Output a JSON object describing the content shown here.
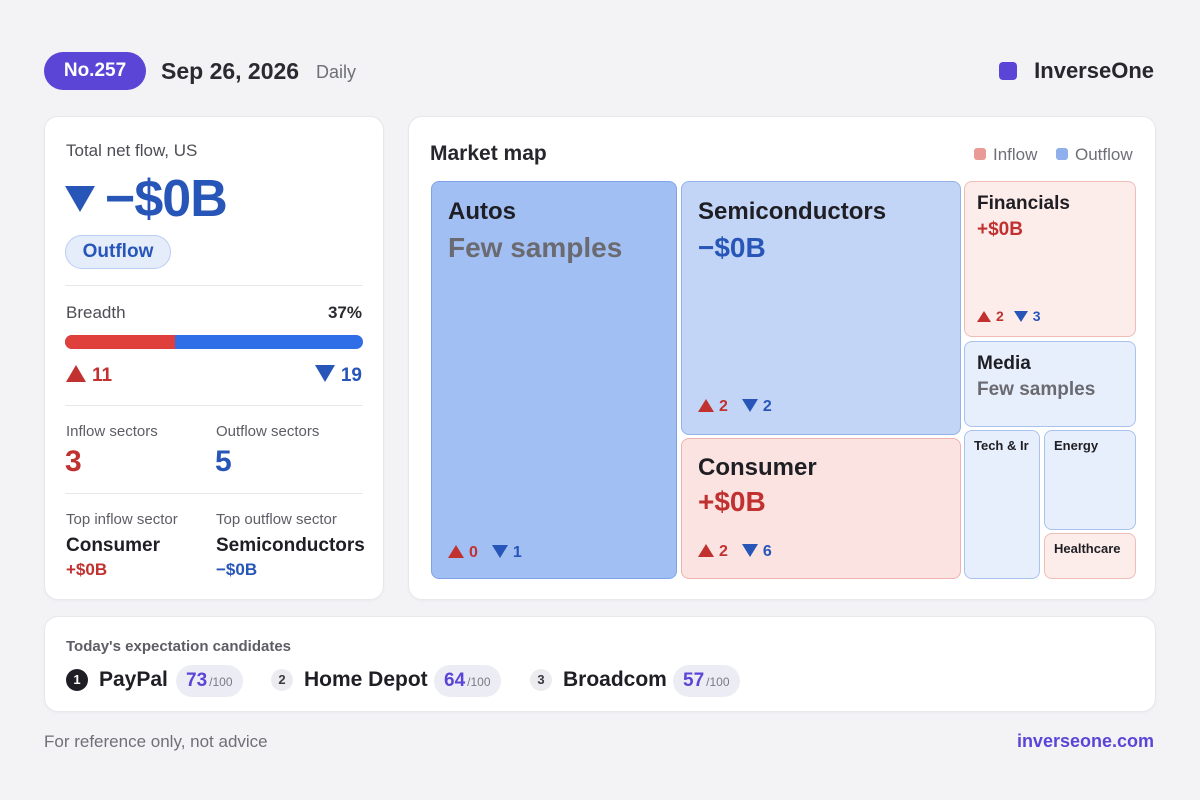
{
  "header": {
    "badge": "No.257",
    "date": "Sep 26, 2026",
    "frequency": "Daily",
    "brand": "InverseOne",
    "brand_color": "#5b45d6"
  },
  "summary": {
    "label": "Total net flow, US",
    "value": "−$0B",
    "direction": "Outflow",
    "breadth_label": "Breadth",
    "breadth_pct_text": "37%",
    "breadth_fraction": 0.37,
    "up_count": "11",
    "down_count": "19",
    "inflow_sectors_label": "Inflow sectors",
    "inflow_sectors": "3",
    "outflow_sectors_label": "Outflow sectors",
    "outflow_sectors": "5",
    "top_inflow_label": "Top inflow sector",
    "top_inflow_name": "Consumer",
    "top_inflow_value": "+$0B",
    "top_outflow_label": "Top outflow sector",
    "top_outflow_name": "Semiconductors",
    "top_outflow_value": "−$0B"
  },
  "map": {
    "title": "Market map",
    "legend_inflow": "Inflow",
    "legend_outflow": "Outflow",
    "inflow_color": "#e99a96",
    "outflow_color": "#8fb0ec",
    "tiles": {
      "autos": {
        "name": "Autos",
        "value": "Few samples",
        "up": "0",
        "down": "1"
      },
      "semiconductors": {
        "name": "Semiconductors",
        "value": "−$0B",
        "up": "2",
        "down": "2"
      },
      "consumer": {
        "name": "Consumer",
        "value": "+$0B",
        "up": "2",
        "down": "6"
      },
      "financials": {
        "name": "Financials",
        "value": "+$0B",
        "up": "2",
        "down": "3"
      },
      "media": {
        "name": "Media",
        "value": "Few samples"
      },
      "tech": {
        "name": "Tech & Ir"
      },
      "energy": {
        "name": "Energy"
      },
      "healthcare": {
        "name": "Healthcare"
      }
    }
  },
  "candidates": {
    "title": "Today's expectation candidates",
    "items": [
      {
        "rank": "1",
        "name": "PayPal",
        "score": "73",
        "denom": "/100"
      },
      {
        "rank": "2",
        "name": "Home Depot",
        "score": "64",
        "denom": "/100"
      },
      {
        "rank": "3",
        "name": "Broadcom",
        "score": "57",
        "denom": "/100"
      }
    ]
  },
  "footer": {
    "disclaimer": "For reference only, not advice",
    "site": "inverseone.com"
  }
}
